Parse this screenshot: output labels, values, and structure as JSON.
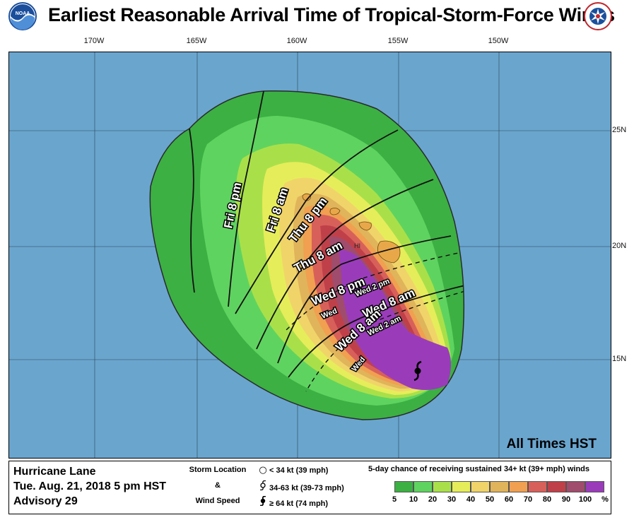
{
  "title": "Earliest Reasonable Arrival Time of Tropical-Storm-Force Winds",
  "logos": {
    "left": "noaa-logo",
    "right": "national-weather-service-logo"
  },
  "lon_ticks": [
    "170W",
    "165W",
    "160W",
    "155W",
    "150W"
  ],
  "lat_ticks": [
    "25N",
    "20N",
    "15N"
  ],
  "map": {
    "ocean_color": "#6aa5ce",
    "isochrone_labels": [
      "Fri 8 pm",
      "Fri 8 am",
      "Thu 8 pm",
      "Thu 8 am",
      "Wed 8 pm",
      "Wed 2 pm",
      "Wed 8 am",
      "Wed 2 am",
      "Wed 8 am",
      "Wed"
    ],
    "place_label": "HI",
    "note": "All Times HST"
  },
  "storm": {
    "name": "Hurricane Lane",
    "datetime": "Tue. Aug. 21, 2018  5 pm HST",
    "advisory": "Advisory 29"
  },
  "storm_location_legend": {
    "title_lines": [
      "Storm Location",
      "&",
      "Wind Speed"
    ],
    "items": [
      {
        "icon": "open-circle-icon",
        "label": "< 34 kt (39 mph)"
      },
      {
        "icon": "tropical-storm-icon",
        "label": "34-63 kt (39-73 mph)"
      },
      {
        "icon": "hurricane-icon",
        "label": "≥ 64 kt (74 mph)"
      }
    ]
  },
  "probability_legend": {
    "title": "5-day chance of receiving sustained 34+ kt (39+ mph) winds",
    "levels": [
      {
        "label": "5",
        "color": "#3cb043"
      },
      {
        "label": "10",
        "color": "#5fd35f"
      },
      {
        "label": "20",
        "color": "#a9e04a"
      },
      {
        "label": "30",
        "color": "#e6ed5a"
      },
      {
        "label": "40",
        "color": "#f0d46a"
      },
      {
        "label": "50",
        "color": "#e0b45a"
      },
      {
        "label": "60",
        "color": "#f0a050"
      },
      {
        "label": "70",
        "color": "#d8605a"
      },
      {
        "label": "80",
        "color": "#c0404a"
      },
      {
        "label": "90",
        "color": "#a04c6c"
      },
      {
        "label": "100",
        "color": "#9a3cba"
      }
    ],
    "unit": "%"
  }
}
